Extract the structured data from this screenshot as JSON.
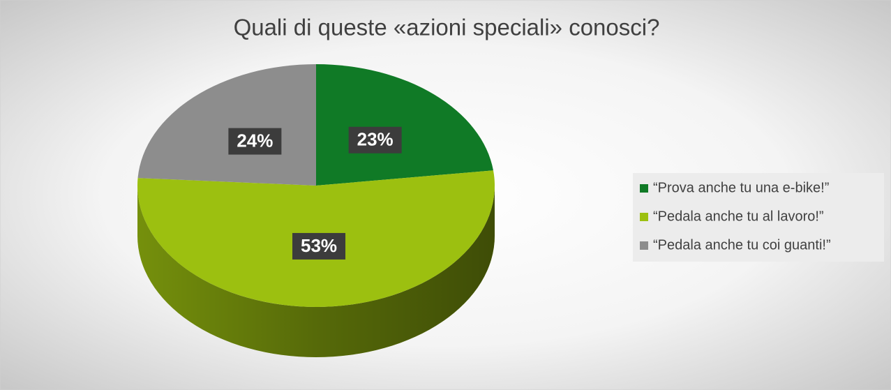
{
  "chart_data": {
    "type": "pie",
    "title": "Quali di queste «azioni speciali» conosci?",
    "categories": [
      "“Prova anche tu una e-bike!”",
      "“Pedala anche tu al lavoro!”",
      "“Pedala anche tu coi guanti!”"
    ],
    "values": [
      23,
      53,
      24
    ],
    "value_labels": [
      "23%",
      "53%",
      "24%"
    ],
    "colors": [
      "#107a26",
      "#9cc010",
      "#8d8d8d"
    ],
    "legend": "right"
  }
}
